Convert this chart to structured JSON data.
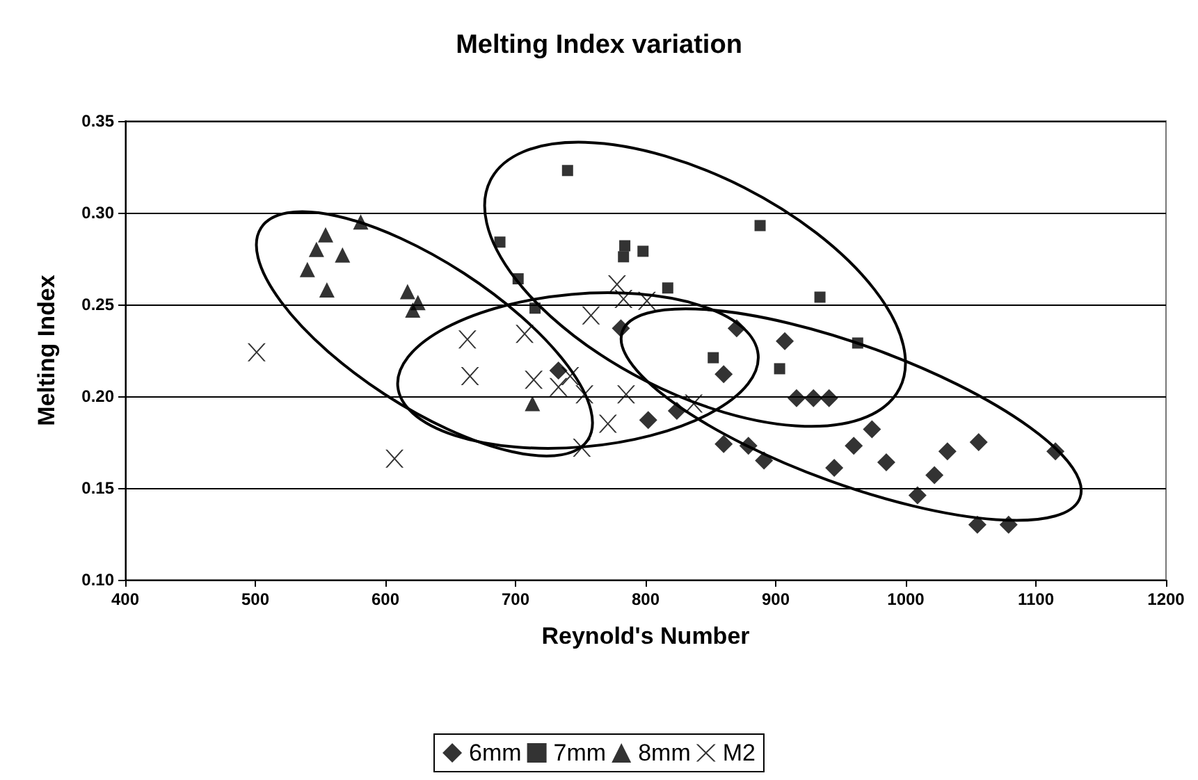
{
  "chart_data": {
    "type": "scatter",
    "title": "Melting Index variation",
    "xlabel": "Reynold's Number",
    "ylabel": "Melting Index",
    "xlim": [
      400,
      1200
    ],
    "xticks": [
      400,
      500,
      600,
      700,
      800,
      900,
      1000,
      1100,
      1200
    ],
    "ylim": [
      0.1,
      0.35
    ],
    "yticks": [
      {
        "value": 0.1,
        "label": "0.10"
      },
      {
        "value": 0.15,
        "label": "0.15"
      },
      {
        "value": 0.2,
        "label": "0.20"
      },
      {
        "value": 0.25,
        "label": "0.25"
      },
      {
        "value": 0.3,
        "label": "0.30"
      },
      {
        "value": 0.35,
        "label": "0.35"
      }
    ],
    "grid": "y",
    "legend": "bottom",
    "series": [
      {
        "name": "6mm",
        "color": "#000000",
        "marker": "diamond",
        "x": [
          781,
          733,
          860,
          870,
          907,
          916,
          929,
          941,
          802,
          824,
          860,
          879,
          891,
          945,
          960,
          974,
          985,
          1009,
          1022,
          1032,
          1056,
          1055,
          1079,
          1115
        ],
        "values": [
          0.237,
          0.214,
          0.212,
          0.237,
          0.23,
          0.199,
          0.199,
          0.199,
          0.187,
          0.192,
          0.174,
          0.173,
          0.165,
          0.161,
          0.173,
          0.182,
          0.164,
          0.146,
          0.157,
          0.17,
          0.175,
          0.13,
          0.13,
          0.17
        ]
      },
      {
        "name": "7mm",
        "color": "#000000",
        "marker": "square",
        "x": [
          740,
          688,
          784,
          783,
          798,
          888,
          702,
          715,
          817,
          852,
          903,
          934,
          963
        ],
        "values": [
          0.323,
          0.284,
          0.282,
          0.276,
          0.279,
          0.293,
          0.264,
          0.248,
          0.259,
          0.221,
          0.215,
          0.254,
          0.229
        ]
      },
      {
        "name": "8mm",
        "color": "#000000",
        "marker": "triangle",
        "x": [
          581,
          554,
          547,
          567,
          540,
          555,
          617,
          625,
          621,
          713
        ],
        "values": [
          0.295,
          0.288,
          0.28,
          0.277,
          0.269,
          0.258,
          0.257,
          0.251,
          0.247,
          0.196
        ]
      },
      {
        "name": "M2",
        "color": "#000000",
        "marker": "cross",
        "x": [
          501,
          607,
          663,
          665,
          707,
          714,
          733,
          753,
          758,
          778,
          783,
          801,
          785,
          771,
          751,
          837,
          742
        ],
        "values": [
          0.224,
          0.166,
          0.231,
          0.211,
          0.234,
          0.209,
          0.205,
          0.201,
          0.244,
          0.261,
          0.253,
          0.252,
          0.201,
          0.185,
          0.172,
          0.196,
          0.211
        ]
      }
    ]
  }
}
